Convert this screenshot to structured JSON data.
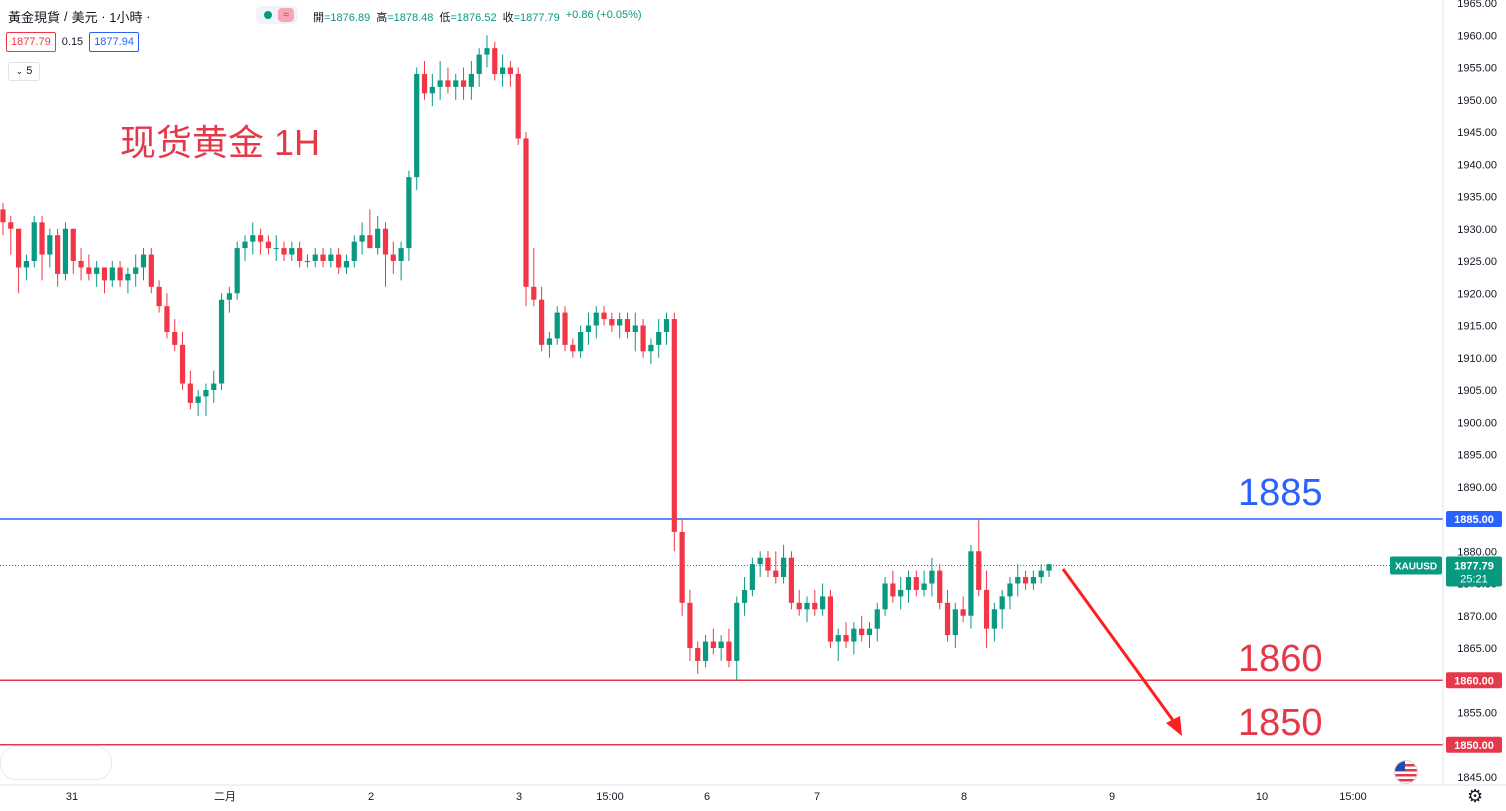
{
  "header": {
    "symbol_name": "黃金現貨",
    "sep": "/",
    "currency": "美元",
    "interval": "1小時",
    "ohlc": {
      "open_label": "開",
      "open": "=1876.89",
      "high_label": "高",
      "high": "=1878.48",
      "low_label": "低",
      "low": "=1876.52",
      "close_label": "收",
      "close": "=1877.79",
      "change": "+0.86 (+0.05%)"
    }
  },
  "bid": "1877.79",
  "spread": "0.15",
  "ask": "1877.94",
  "indicator_collapse": "5",
  "chart_title": "现货黄金 1H",
  "level_labels": {
    "l1885": "1885",
    "l1860": "1860",
    "l1850": "1850"
  },
  "colors": {
    "up": "#089981",
    "down": "#f23645",
    "level_blue": "#2962ff",
    "level_red": "#e5384a",
    "arrow": "#ff1e1e"
  },
  "chart_data": {
    "type": "candlestick",
    "title": "现货黄金 1H",
    "symbol": "XAUUSD",
    "last_price": "1877.79",
    "countdown": "25:21",
    "ylim": [
      1844,
      1966
    ],
    "y_ticks": [
      "1965.00",
      "1960.00",
      "1955.00",
      "1950.00",
      "1945.00",
      "1940.00",
      "1935.00",
      "1930.00",
      "1925.00",
      "1920.00",
      "1915.00",
      "1910.00",
      "1905.00",
      "1900.00",
      "1895.00",
      "1890.00",
      "1880.00",
      "1875.00",
      "1870.00",
      "1865.00",
      "1855.00",
      "1845.00"
    ],
    "x_ticks": [
      "31",
      "二月",
      "2",
      "3",
      "15:00",
      "6",
      "7",
      "8",
      "9",
      "10",
      "15:00"
    ],
    "horizontal_levels": [
      {
        "value": 1885,
        "label": "1885.00",
        "color": "#2962ff"
      },
      {
        "value": 1860,
        "label": "1860.00",
        "color": "#e5384a"
      },
      {
        "value": 1850,
        "label": "1850.00",
        "color": "#e5384a"
      }
    ],
    "candles_ohlc": [
      [
        1933,
        1934,
        1929,
        1931
      ],
      [
        1931,
        1932,
        1926,
        1930
      ],
      [
        1930,
        1930,
        1920,
        1924
      ],
      [
        1924,
        1926,
        1922,
        1925
      ],
      [
        1925,
        1932,
        1924,
        1931
      ],
      [
        1931,
        1932,
        1922,
        1926
      ],
      [
        1926,
        1930,
        1924,
        1929
      ],
      [
        1929,
        1930,
        1921,
        1923
      ],
      [
        1923,
        1931,
        1922,
        1930
      ],
      [
        1930,
        1930,
        1923,
        1925
      ],
      [
        1925,
        1927,
        1922,
        1924
      ],
      [
        1924,
        1926,
        1922,
        1923
      ],
      [
        1923,
        1925,
        1921,
        1924
      ],
      [
        1924,
        1924,
        1920,
        1922
      ],
      [
        1922,
        1925,
        1921,
        1924
      ],
      [
        1924,
        1925,
        1921,
        1922
      ],
      [
        1922,
        1924,
        1920,
        1923
      ],
      [
        1923,
        1926,
        1921,
        1924
      ],
      [
        1924,
        1927,
        1922,
        1926
      ],
      [
        1926,
        1927,
        1920,
        1921
      ],
      [
        1921,
        1922,
        1917,
        1918
      ],
      [
        1918,
        1920,
        1913,
        1914
      ],
      [
        1914,
        1916,
        1911,
        1912
      ],
      [
        1912,
        1914,
        1905,
        1906
      ],
      [
        1906,
        1908,
        1902,
        1903
      ],
      [
        1903,
        1905,
        1901,
        1904
      ],
      [
        1904,
        1906,
        1901,
        1905
      ],
      [
        1905,
        1908,
        1903,
        1906
      ],
      [
        1906,
        1920,
        1905,
        1919
      ],
      [
        1919,
        1921,
        1917,
        1920
      ],
      [
        1920,
        1928,
        1919,
        1927
      ],
      [
        1927,
        1929,
        1925,
        1928
      ],
      [
        1928,
        1931,
        1926,
        1929
      ],
      [
        1929,
        1930,
        1926,
        1928
      ],
      [
        1928,
        1929,
        1926,
        1927
      ],
      [
        1927,
        1929,
        1925,
        1927
      ],
      [
        1927,
        1928,
        1925,
        1926
      ],
      [
        1926,
        1928,
        1925,
        1927
      ],
      [
        1927,
        1928,
        1924,
        1925
      ],
      [
        1925,
        1926,
        1924,
        1925
      ],
      [
        1925,
        1927,
        1924,
        1926
      ],
      [
        1926,
        1927,
        1924,
        1925
      ],
      [
        1925,
        1927,
        1924,
        1926
      ],
      [
        1926,
        1927,
        1923,
        1924
      ],
      [
        1924,
        1926,
        1923,
        1925
      ],
      [
        1925,
        1929,
        1924,
        1928
      ],
      [
        1928,
        1931,
        1926,
        1929
      ],
      [
        1929,
        1933,
        1927,
        1927
      ],
      [
        1927,
        1932,
        1926,
        1930
      ],
      [
        1930,
        1931,
        1921,
        1926
      ],
      [
        1926,
        1928,
        1923,
        1925
      ],
      [
        1925,
        1928,
        1922,
        1927
      ],
      [
        1927,
        1939,
        1925,
        1938
      ],
      [
        1938,
        1955,
        1936,
        1954
      ],
      [
        1954,
        1956,
        1950,
        1951
      ],
      [
        1951,
        1954,
        1949,
        1952
      ],
      [
        1952,
        1956,
        1950,
        1953
      ],
      [
        1953,
        1955,
        1951,
        1952
      ],
      [
        1952,
        1954,
        1950,
        1953
      ],
      [
        1953,
        1955,
        1950,
        1952
      ],
      [
        1952,
        1956,
        1950,
        1954
      ],
      [
        1954,
        1958,
        1952,
        1957
      ],
      [
        1957,
        1960,
        1955,
        1958
      ],
      [
        1958,
        1959,
        1953,
        1954
      ],
      [
        1954,
        1957,
        1952,
        1955
      ],
      [
        1955,
        1956,
        1952,
        1954
      ],
      [
        1954,
        1955,
        1943,
        1944
      ],
      [
        1944,
        1945,
        1918,
        1921
      ],
      [
        1921,
        1927,
        1918,
        1919
      ],
      [
        1919,
        1921,
        1911,
        1912
      ],
      [
        1912,
        1914,
        1910,
        1913
      ],
      [
        1913,
        1918,
        1912,
        1917
      ],
      [
        1917,
        1918,
        1911,
        1912
      ],
      [
        1912,
        1913,
        1910,
        1911
      ],
      [
        1911,
        1915,
        1910,
        1914
      ],
      [
        1914,
        1917,
        1912,
        1915
      ],
      [
        1915,
        1918,
        1913,
        1917
      ],
      [
        1917,
        1918,
        1915,
        1916
      ],
      [
        1916,
        1917,
        1914,
        1915
      ],
      [
        1915,
        1917,
        1913,
        1916
      ],
      [
        1916,
        1917,
        1913,
        1914
      ],
      [
        1914,
        1917,
        1911,
        1915
      ],
      [
        1915,
        1916,
        1910,
        1911
      ],
      [
        1911,
        1913,
        1909,
        1912
      ],
      [
        1912,
        1916,
        1910,
        1914
      ],
      [
        1914,
        1917,
        1912,
        1916
      ],
      [
        1916,
        1917,
        1880,
        1883
      ],
      [
        1883,
        1885,
        1870,
        1872
      ],
      [
        1872,
        1874,
        1863,
        1865
      ],
      [
        1865,
        1866,
        1861,
        1863
      ],
      [
        1863,
        1867,
        1862,
        1866
      ],
      [
        1866,
        1868,
        1864,
        1865
      ],
      [
        1865,
        1867,
        1863,
        1866
      ],
      [
        1866,
        1868,
        1862,
        1863
      ],
      [
        1863,
        1873,
        1860,
        1872
      ],
      [
        1872,
        1876,
        1870,
        1874
      ],
      [
        1874,
        1879,
        1873,
        1878
      ],
      [
        1878,
        1880,
        1876,
        1879
      ],
      [
        1879,
        1880,
        1876,
        1877
      ],
      [
        1877,
        1880,
        1875,
        1876
      ],
      [
        1876,
        1881,
        1875,
        1879
      ],
      [
        1879,
        1880,
        1871,
        1872
      ],
      [
        1872,
        1874,
        1870,
        1871
      ],
      [
        1871,
        1873,
        1869,
        1872
      ],
      [
        1872,
        1874,
        1870,
        1871
      ],
      [
        1871,
        1875,
        1870,
        1873
      ],
      [
        1873,
        1874,
        1865,
        1866
      ],
      [
        1866,
        1868,
        1863,
        1867
      ],
      [
        1867,
        1869,
        1865,
        1866
      ],
      [
        1866,
        1869,
        1864,
        1868
      ],
      [
        1868,
        1870,
        1866,
        1867
      ],
      [
        1867,
        1869,
        1865,
        1868
      ],
      [
        1868,
        1872,
        1866,
        1871
      ],
      [
        1871,
        1876,
        1870,
        1875
      ],
      [
        1875,
        1877,
        1872,
        1873
      ],
      [
        1873,
        1876,
        1871,
        1874
      ],
      [
        1874,
        1877,
        1872,
        1876
      ],
      [
        1876,
        1877,
        1873,
        1874
      ],
      [
        1874,
        1877,
        1873,
        1875
      ],
      [
        1875,
        1879,
        1873,
        1877
      ],
      [
        1877,
        1878,
        1871,
        1872
      ],
      [
        1872,
        1874,
        1866,
        1867
      ],
      [
        1867,
        1872,
        1865,
        1871
      ],
      [
        1871,
        1873,
        1869,
        1870
      ],
      [
        1870,
        1881,
        1868,
        1880
      ],
      [
        1880,
        1885,
        1873,
        1874
      ],
      [
        1874,
        1877,
        1865,
        1868
      ],
      [
        1868,
        1872,
        1866,
        1871
      ],
      [
        1871,
        1874,
        1868,
        1873
      ],
      [
        1873,
        1876,
        1871,
        1875
      ],
      [
        1875,
        1878,
        1873,
        1876
      ],
      [
        1876,
        1877,
        1874,
        1875
      ],
      [
        1875,
        1877,
        1874,
        1876
      ],
      [
        1876,
        1878,
        1875,
        1877
      ],
      [
        1877,
        1878,
        1876,
        1878
      ]
    ]
  }
}
